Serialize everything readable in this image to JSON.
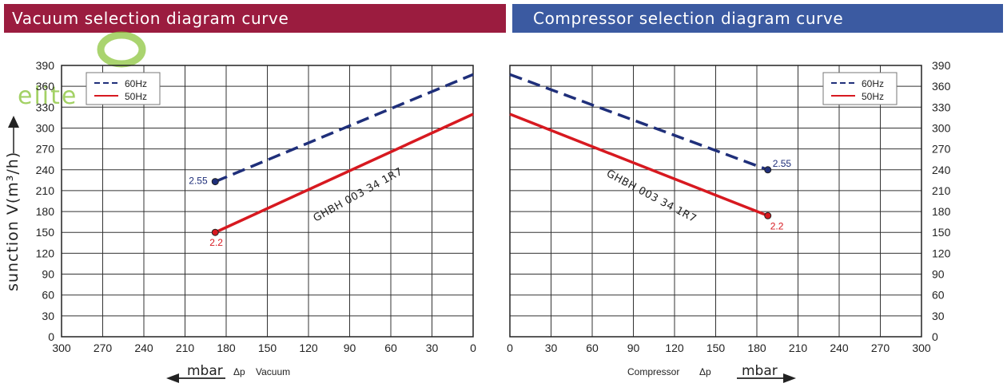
{
  "titles": {
    "left": "Vacuum selection diagram curve",
    "right": "Compressor selection diagram curve"
  },
  "watermark": "elite tech",
  "y_axis_label": "sunction V(m³/h)",
  "model_label": "GHBH 003 34 1R7",
  "unit_label": "mbar",
  "x_label_left": {
    "symbol": "Δp",
    "text": "Vacuum"
  },
  "x_label_right": {
    "text": "Compressor",
    "symbol": "Δp"
  },
  "colors": {
    "series_60hz": "#1f2f7a",
    "series_50hz": "#d71920",
    "grid": "#333333",
    "vacuum_banner": "#9b1c3f",
    "compressor_banner": "#3b5aa1"
  },
  "chart_data": [
    {
      "type": "line",
      "title": "Vacuum selection diagram curve",
      "xlabel": "Δp Vacuum",
      "x_unit": "mbar",
      "ylabel": "sunction V(m³/h)",
      "xlim": [
        300,
        0
      ],
      "ylim": [
        0,
        390
      ],
      "x_ticks": [
        300,
        270,
        240,
        210,
        180,
        150,
        120,
        90,
        60,
        30,
        0
      ],
      "y_ticks": [
        0,
        30,
        60,
        90,
        120,
        150,
        180,
        210,
        240,
        270,
        300,
        330,
        360,
        390
      ],
      "grid": true,
      "legend": "top-left",
      "series": [
        {
          "name": "60Hz",
          "style": "dashed",
          "x": [
            188,
            0
          ],
          "y": [
            223,
            377
          ],
          "end_label": "2.55"
        },
        {
          "name": "50Hz",
          "style": "solid",
          "x": [
            188,
            0
          ],
          "y": [
            150,
            320
          ],
          "end_label": "2.2"
        }
      ],
      "annotation": "GHBH 003 34 1R7"
    },
    {
      "type": "line",
      "title": "Compressor selection diagram curve",
      "xlabel": "Compressor Δp",
      "x_unit": "mbar",
      "ylabel": "",
      "xlim": [
        0,
        300
      ],
      "ylim": [
        0,
        390
      ],
      "x_ticks": [
        0,
        30,
        60,
        90,
        120,
        150,
        180,
        210,
        240,
        270,
        300
      ],
      "y_ticks": [
        0,
        30,
        60,
        90,
        120,
        150,
        180,
        210,
        240,
        270,
        300,
        330,
        360,
        390
      ],
      "grid": true,
      "legend": "top-right",
      "series": [
        {
          "name": "60Hz",
          "style": "dashed",
          "x": [
            0,
            188
          ],
          "y": [
            377,
            240
          ],
          "end_label": "2.55"
        },
        {
          "name": "50Hz",
          "style": "solid",
          "x": [
            0,
            188
          ],
          "y": [
            320,
            174
          ],
          "end_label": "2.2"
        }
      ],
      "annotation": "GHBH 003 34 1R7"
    }
  ]
}
